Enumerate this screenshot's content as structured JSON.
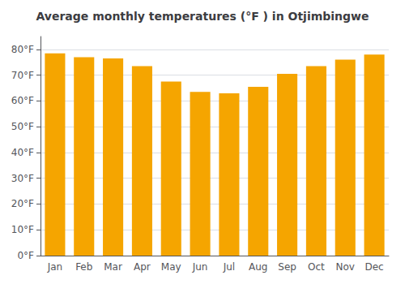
{
  "chart_data": {
    "type": "bar",
    "title": "Average monthly temperatures (°F ) in Otjimbingwe",
    "categories": [
      "Jan",
      "Feb",
      "Mar",
      "Apr",
      "May",
      "Jun",
      "Jul",
      "Aug",
      "Sep",
      "Oct",
      "Nov",
      "Dec"
    ],
    "values": [
      78.5,
      77.0,
      76.5,
      73.5,
      67.5,
      63.5,
      63.0,
      65.5,
      70.5,
      73.5,
      76.0,
      78.0
    ],
    "color": "#F5A500",
    "ylim": [
      0,
      85
    ],
    "yticks": [
      {
        "value": 0,
        "label": "0°F"
      },
      {
        "value": 10,
        "label": "10°F"
      },
      {
        "value": 20,
        "label": "20°F"
      },
      {
        "value": 30,
        "label": "30°F"
      },
      {
        "value": 40,
        "label": "40°F"
      },
      {
        "value": 50,
        "label": "50°F"
      },
      {
        "value": 60,
        "label": "60°F"
      },
      {
        "value": 70,
        "label": "70°F"
      },
      {
        "value": 80,
        "label": "80°F"
      }
    ],
    "grid": true
  }
}
